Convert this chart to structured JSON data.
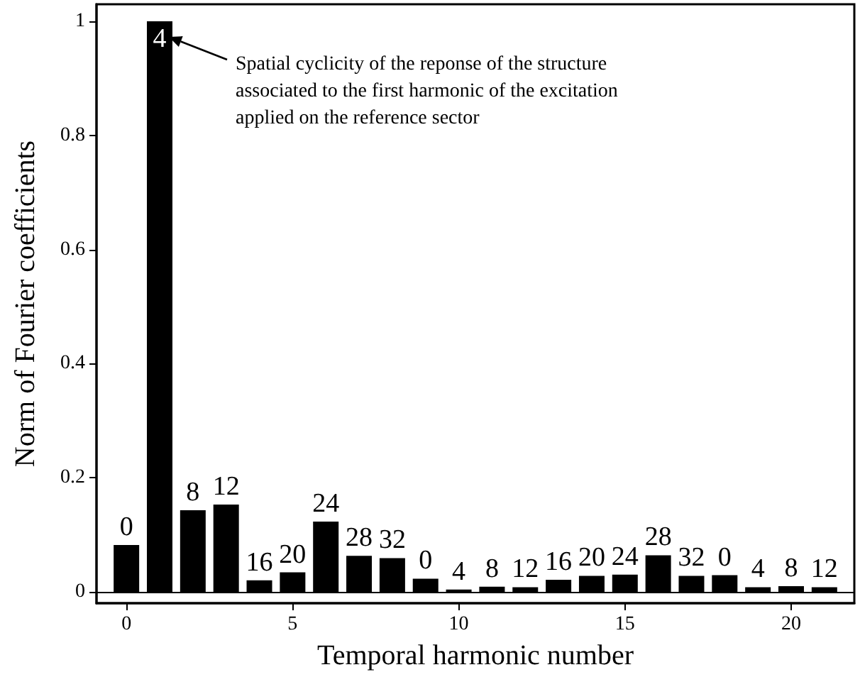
{
  "chart_data": {
    "type": "bar",
    "xlabel": "Temporal harmonic number",
    "ylabel": "Norm of Fourier coefficients",
    "x": [
      0,
      1,
      2,
      3,
      4,
      5,
      6,
      7,
      8,
      9,
      10,
      11,
      12,
      13,
      14,
      15,
      16,
      17,
      18,
      19,
      20,
      21
    ],
    "values": [
      0.082,
      1,
      0.143,
      0.153,
      0.02,
      0.034,
      0.123,
      0.063,
      0.059,
      0.023,
      0.004,
      0.009,
      0.008,
      0.021,
      0.028,
      0.03,
      0.064,
      0.028,
      0.029,
      0.008,
      0.01,
      0.008
    ],
    "color": "#000000",
    "xlim": [
      -0.9,
      21.9
    ],
    "xticks": [
      0,
      5,
      10,
      15,
      20
    ],
    "ylim": [
      -0.02,
      1.03
    ],
    "yticks": [
      0,
      0.2,
      0.4,
      0.6,
      0.8,
      1
    ],
    "ref_lines": [
      {
        "axis": "y",
        "value": 0,
        "color": "#000000"
      }
    ],
    "annotations": [
      "Spatial cyclicity of the reponse of the structure\nassociated to the first harmonic of the excitation\napplied on the reference sector",
      {
        "text": "0",
        "x": 0,
        "y": 0.082
      },
      {
        "text": "4",
        "x": 1,
        "y": 1
      },
      {
        "text": "8",
        "x": 2,
        "y": 0.143
      },
      {
        "text": "12",
        "x": 3,
        "y": 0.153
      },
      {
        "text": "16",
        "x": 4,
        "y": 0.02
      },
      {
        "text": "20",
        "x": 5,
        "y": 0.034
      },
      {
        "text": "24",
        "x": 6,
        "y": 0.123
      },
      {
        "text": "28",
        "x": 7,
        "y": 0.063
      },
      {
        "text": "32",
        "x": 8,
        "y": 0.059
      },
      {
        "text": "0",
        "x": 9,
        "y": 0.023
      },
      {
        "text": "4",
        "x": 10,
        "y": 0.004
      },
      {
        "text": "8",
        "x": 11,
        "y": 0.009
      },
      {
        "text": "12",
        "x": 12,
        "y": 0.008
      },
      {
        "text": "16",
        "x": 13,
        "y": 0.021
      },
      {
        "text": "20",
        "x": 14,
        "y": 0.028
      },
      {
        "text": "24",
        "x": 15,
        "y": 0.03
      },
      {
        "text": "28",
        "x": 16,
        "y": 0.064
      },
      {
        "text": "32",
        "x": 17,
        "y": 0.028
      },
      {
        "text": "0",
        "x": 18,
        "y": 0.029
      },
      {
        "text": "4",
        "x": 19,
        "y": 0.008
      },
      {
        "text": "8",
        "x": 20,
        "y": 0.01
      },
      {
        "text": "12",
        "x": 21,
        "y": 0.008
      }
    ],
    "grid": false
  }
}
